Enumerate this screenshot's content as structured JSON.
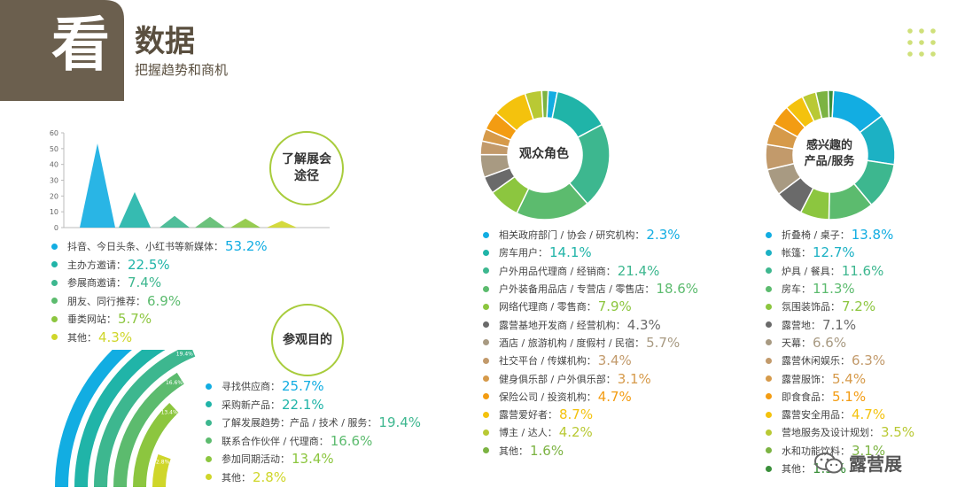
{
  "header": {
    "big_char": "看",
    "title": "数据",
    "subtitle": "把握趋势和商机"
  },
  "colors": {
    "brown": "#6b5f4e",
    "accent_green": "#a8cc3c"
  },
  "chart_data": [
    {
      "id": "channels",
      "type": "area",
      "subtype": "peaks",
      "title": "了解展会途径",
      "y_ticks": [
        "0",
        "10",
        "20",
        "30",
        "40",
        "50",
        "60"
      ],
      "ylim": [
        0,
        60
      ],
      "categories": [
        "抖音、今日头条、小红书等新媒体：",
        "主办方邀请：",
        "参展商邀请：",
        "朋友、同行推荐：",
        "垂类网站：",
        "其他："
      ],
      "values": [
        "53.2%",
        "22.5%",
        "7.4%",
        "6.9%",
        "5.7%",
        "4.3%"
      ],
      "numeric": [
        53.2,
        22.5,
        7.4,
        6.9,
        5.7,
        4.3
      ],
      "colors": [
        "#12ade2",
        "#20b4a8",
        "#3db78f",
        "#5cbb6e",
        "#8cc63f",
        "#cfd62a"
      ]
    },
    {
      "id": "purpose",
      "type": "bar",
      "subtype": "radial-arcs",
      "title": "参观目的",
      "categories": [
        "寻找供应商：",
        "采购新产品：",
        "了解发展趋势：产品 / 技术 / 服务：",
        "联系合作伙伴 / 代理商：",
        "参加同期活动：",
        "其他："
      ],
      "values": [
        "25.7%",
        "22.1%",
        "19.4%",
        "16.6%",
        "13.4%",
        "2.8%"
      ],
      "numeric": [
        25.7,
        22.1,
        19.4,
        16.6,
        13.4,
        2.8
      ],
      "colors": [
        "#12ade2",
        "#20b4a8",
        "#3db78f",
        "#5cbb6e",
        "#8cc63f",
        "#cfd62a"
      ]
    },
    {
      "id": "roles",
      "type": "pie",
      "subtype": "donut",
      "title": "观众角色",
      "categories": [
        "相关政府部门 / 协会 / 研究机构：",
        "房车用户：",
        "户外用品代理商 / 经销商：",
        "户外装备用品店 / 专营店 / 零售店：",
        "网络代理商 / 零售商：",
        "露营基地开发商 / 经营机构：",
        "酒店 / 旅游机构 / 度假村 / 民宿：",
        "社交平台 / 传媒机构：",
        "健身俱乐部 / 户外俱乐部：",
        "保险公司 / 投资机构：",
        "露营爱好者：",
        "博主 / 达人：",
        "其他："
      ],
      "values": [
        "2.3%",
        "14.1%",
        "21.4%",
        "18.6%",
        "7.9%",
        "4.3%",
        "5.7%",
        "3.4%",
        "3.1%",
        "4.7%",
        "8.7%",
        "4.2%",
        "1.6%"
      ],
      "numeric": [
        2.3,
        14.1,
        21.4,
        18.6,
        7.9,
        4.3,
        5.7,
        3.4,
        3.1,
        4.7,
        8.7,
        4.2,
        1.6
      ],
      "colors": [
        "#12ade2",
        "#20b4a8",
        "#3db78f",
        "#5cbb6e",
        "#8cc63f",
        "#6a6a6a",
        "#a89a82",
        "#c29a6b",
        "#d69a4a",
        "#f39c12",
        "#f4c20d",
        "#b9c934",
        "#7cb342"
      ]
    },
    {
      "id": "interest",
      "type": "pie",
      "subtype": "donut",
      "title": "感兴趣的\n产品/服务",
      "categories": [
        "折叠椅 / 桌子：",
        "帐篷：",
        "炉具 / 餐具：",
        "房车：",
        "氛围装饰品：",
        "露营地：",
        "天幕：",
        "露营休闲娱乐：",
        "露营服饰：",
        "即食食品：",
        "露营安全用品：",
        "营地服务及设计规划：",
        "水和功能饮料：",
        "其他："
      ],
      "values": [
        "13.8%",
        "12.7%",
        "11.6%",
        "11.3%",
        "7.2%",
        "7.1%",
        "6.6%",
        "6.3%",
        "5.4%",
        "5.1%",
        "4.7%",
        "3.5%",
        "3.1%",
        "1.3%"
      ],
      "numeric": [
        13.8,
        12.7,
        11.6,
        11.3,
        7.2,
        7.1,
        6.6,
        6.3,
        5.4,
        5.1,
        4.7,
        3.5,
        3.1,
        1.3
      ],
      "colors": [
        "#12ade2",
        "#1cb1c4",
        "#3db78f",
        "#5cbb6e",
        "#8cc63f",
        "#6a6a6a",
        "#a89a82",
        "#c29a6b",
        "#d69a4a",
        "#f39c12",
        "#f4c20d",
        "#b9c934",
        "#7cb342",
        "#3a8f3a"
      ]
    }
  ],
  "watermark": {
    "text": "露营展"
  }
}
